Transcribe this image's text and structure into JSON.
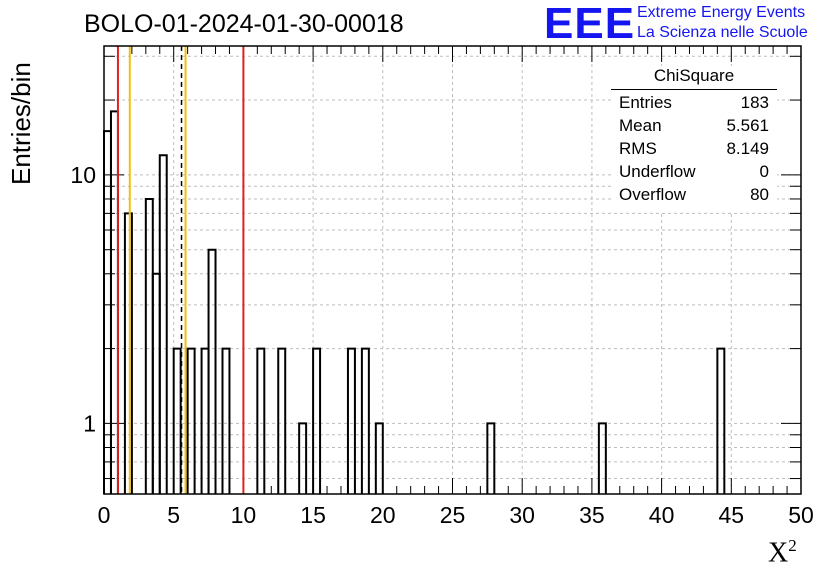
{
  "title": "BOLO-01-2024-01-30-00018",
  "logo": {
    "mark": "EEE",
    "line1": "Extreme Energy Events",
    "line2": "La Scienza nelle Scuole"
  },
  "stats": {
    "title": "ChiSquare",
    "rows": [
      {
        "name": "Entries",
        "value": "183"
      },
      {
        "name": "Mean",
        "value": "5.561"
      },
      {
        "name": "RMS",
        "value": "8.149"
      },
      {
        "name": "Underflow",
        "value": "0"
      },
      {
        "name": "Overflow",
        "value": "80"
      }
    ]
  },
  "axes": {
    "ylabel": "Entries/bin",
    "xlabel": "X",
    "xlabel_sup": "2"
  },
  "chart_data": {
    "type": "bar",
    "histogram": "step",
    "bin_width": 0.5,
    "bins": [
      {
        "x": 0.0,
        "count": 15
      },
      {
        "x": 0.5,
        "count": 18
      },
      {
        "x": 1.5,
        "count": 7
      },
      {
        "x": 3.0,
        "count": 8
      },
      {
        "x": 3.5,
        "count": 4
      },
      {
        "x": 4.0,
        "count": 12
      },
      {
        "x": 5.0,
        "count": 2
      },
      {
        "x": 6.0,
        "count": 2
      },
      {
        "x": 7.0,
        "count": 2
      },
      {
        "x": 7.5,
        "count": 5
      },
      {
        "x": 8.5,
        "count": 2
      },
      {
        "x": 11.0,
        "count": 2
      },
      {
        "x": 12.5,
        "count": 2
      },
      {
        "x": 14.0,
        "count": 1
      },
      {
        "x": 15.0,
        "count": 2
      },
      {
        "x": 17.5,
        "count": 2
      },
      {
        "x": 18.5,
        "count": 2
      },
      {
        "x": 19.5,
        "count": 1
      },
      {
        "x": 27.5,
        "count": 1
      },
      {
        "x": 35.5,
        "count": 1
      },
      {
        "x": 44.0,
        "count": 2
      }
    ],
    "xlim": [
      0,
      50
    ],
    "ylim": [
      0.52,
      33
    ],
    "yscale": "log",
    "xticks": [
      "0",
      "5",
      "10",
      "15",
      "20",
      "25",
      "30",
      "35",
      "40",
      "45",
      "50"
    ],
    "yticks": [
      {
        "value": 1,
        "label": "1"
      },
      {
        "value": 10,
        "label": "10"
      }
    ],
    "grid": true,
    "vlines": [
      {
        "x": 1.0,
        "color": "#e02020",
        "style": "solid"
      },
      {
        "x": 1.85,
        "color": "#f0c010",
        "style": "solid"
      },
      {
        "x": 5.561,
        "color": "#000000",
        "style": "dashed"
      },
      {
        "x": 5.85,
        "color": "#f0c010",
        "style": "solid"
      },
      {
        "x": 10.0,
        "color": "#e02020",
        "style": "solid"
      }
    ]
  }
}
